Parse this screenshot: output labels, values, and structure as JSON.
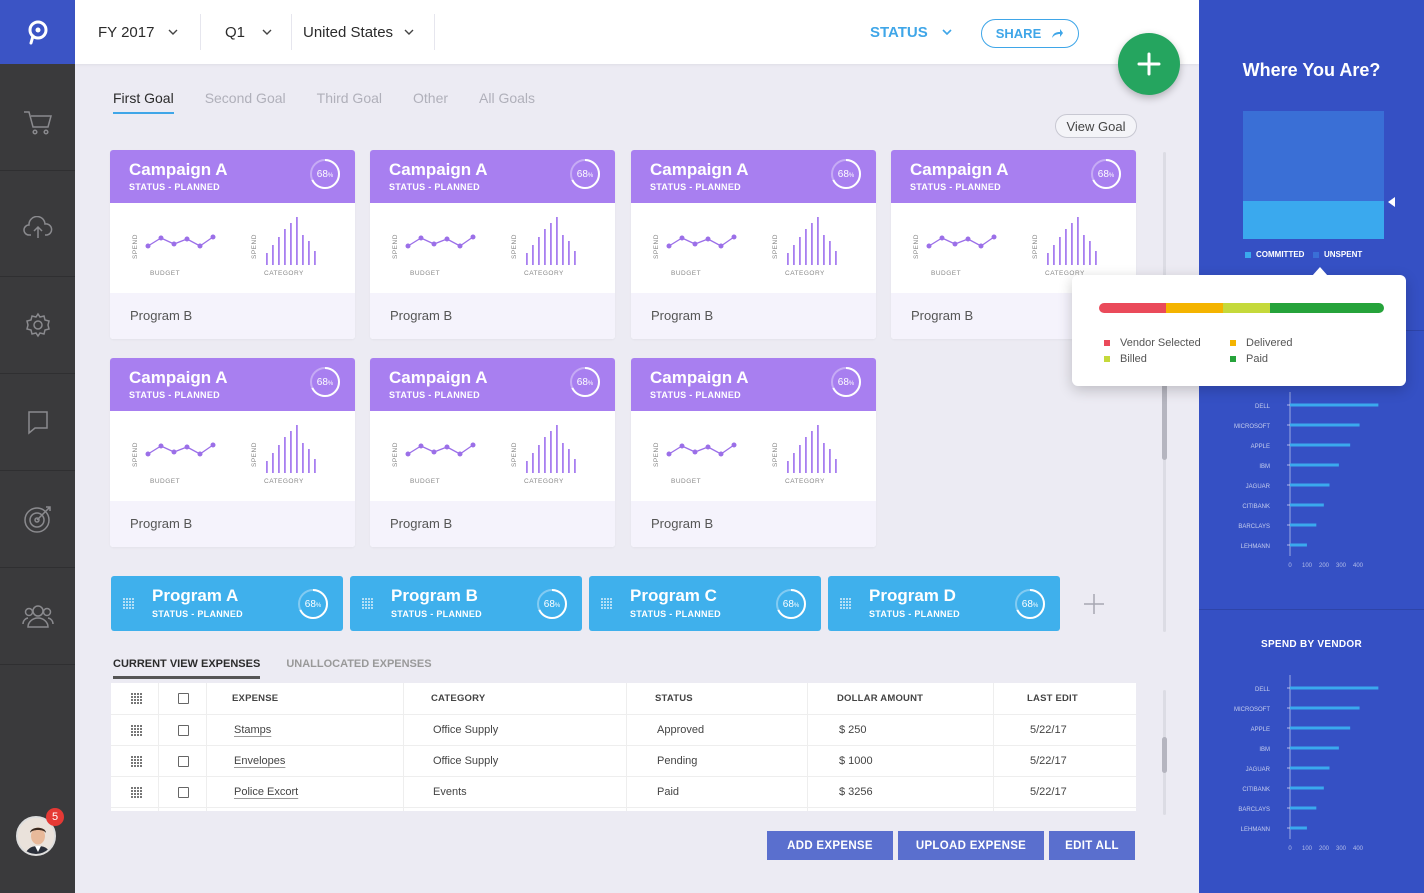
{
  "topbar": {
    "fiscal_year": "FY 2017",
    "quarter": "Q1",
    "region": "United States",
    "status_label": "STATUS",
    "share_label": "SHARE"
  },
  "goal_tabs": [
    "First Goal",
    "Second Goal",
    "Third Goal",
    "Other",
    "All Goals"
  ],
  "view_goal_label": "View Goal",
  "cards": [
    {
      "title": "Campaign A",
      "status": "STATUS - PLANNED",
      "progress": "68",
      "footer": "Program B"
    },
    {
      "title": "Campaign A",
      "status": "STATUS - PLANNED",
      "progress": "68",
      "footer": "Program B"
    },
    {
      "title": "Campaign A",
      "status": "STATUS - PLANNED",
      "progress": "68",
      "footer": "Program B"
    },
    {
      "title": "Campaign A",
      "status": "STATUS - PLANNED",
      "progress": "68",
      "footer": "Program B"
    },
    {
      "title": "Campaign A",
      "status": "STATUS - PLANNED",
      "progress": "68",
      "footer": "Program B"
    },
    {
      "title": "Campaign A",
      "status": "STATUS - PLANNED",
      "progress": "68",
      "footer": "Program B"
    },
    {
      "title": "Campaign A",
      "status": "STATUS - PLANNED",
      "progress": "68",
      "footer": "Program B"
    }
  ],
  "mini_chart_labels": {
    "spend": "SPEND",
    "budget": "BUDGET",
    "category": "CATEGORY"
  },
  "percent_sign": "%",
  "programs": [
    {
      "title": "Program A",
      "status": "STATUS - PLANNED",
      "progress": "68"
    },
    {
      "title": "Program B",
      "status": "STATUS - PLANNED",
      "progress": "68"
    },
    {
      "title": "Program C",
      "status": "STATUS - PLANNED",
      "progress": "68"
    },
    {
      "title": "Program D",
      "status": "STATUS - PLANNED",
      "progress": "68"
    }
  ],
  "expense_tabs": [
    "CURRENT VIEW EXPENSES",
    "UNALLOCATED EXPENSES"
  ],
  "expense_table": {
    "headers": [
      "EXPENSE",
      "CATEGORY",
      "STATUS",
      "DOLLAR AMOUNT",
      "LAST EDIT"
    ],
    "rows": [
      {
        "expense": "Stamps",
        "category": "Office Supply",
        "status": "Approved",
        "amount": "$ 250",
        "last_edit": "5/22/17"
      },
      {
        "expense": "Envelopes",
        "category": "Office Supply",
        "status": "Pending",
        "amount": "$ 1000",
        "last_edit": "5/22/17"
      },
      {
        "expense": "Police Excort",
        "category": "Events",
        "status": "Paid",
        "amount": "$ 3256",
        "last_edit": "5/22/17"
      }
    ]
  },
  "buttons": {
    "add_expense": "ADD EXPENSE",
    "upload_expense": "UPLOAD EXPENSE",
    "edit_all": "EDIT ALL"
  },
  "notifications_count": "5",
  "right_panel": {
    "title": "Where You Are?",
    "legend_committed": "COMMITTED",
    "legend_unspent": "UNSPENT",
    "spend_by_vendor_title": "SPEND BY VENDOR"
  },
  "status_popup": {
    "legend": [
      {
        "label": "Vendor Selected",
        "color": "#ea4a5a"
      },
      {
        "label": "Delivered",
        "color": "#f4b400"
      },
      {
        "label": "Billed",
        "color": "#c5d93b"
      },
      {
        "label": "Paid",
        "color": "#26a33b"
      }
    ]
  },
  "chart_data": [
    {
      "type": "bar",
      "orientation": "horizontal",
      "categories": [
        "DELL",
        "MICROSOFT",
        "APPLE",
        "IBM",
        "JAGUAR",
        "CITIBANK",
        "BARCLAYS",
        "LEHMANN"
      ],
      "values": [
        470,
        370,
        320,
        260,
        210,
        180,
        140,
        90
      ],
      "xticks": [
        "0",
        "100",
        "200",
        "300",
        "400"
      ],
      "xlim": [
        0,
        500
      ]
    },
    {
      "type": "bar",
      "orientation": "horizontal",
      "title": "SPEND BY VENDOR",
      "categories": [
        "DELL",
        "MICROSOFT",
        "APPLE",
        "IBM",
        "JAGUAR",
        "CITIBANK",
        "BARCLAYS",
        "LEHMANN"
      ],
      "values": [
        470,
        370,
        320,
        260,
        210,
        180,
        140,
        90
      ],
      "xticks": [
        "0",
        "100",
        "200",
        "300",
        "400"
      ],
      "xlim": [
        0,
        500
      ]
    }
  ],
  "colors": {
    "accent_blue": "#3fa6e8",
    "card_purple": "#a87ff0",
    "program_blue": "#3fb0ec",
    "panel_blue": "#3550c4",
    "fab_green": "#25a55f"
  }
}
